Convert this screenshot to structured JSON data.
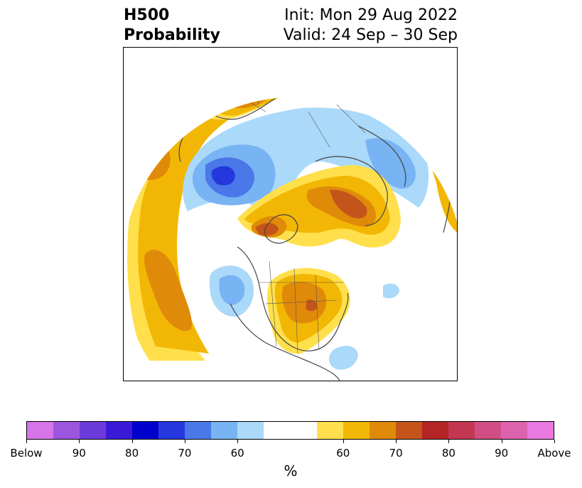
{
  "title": {
    "left_line1": "H500",
    "left_line2": "Probability",
    "right_line1": "Init: Mon 29 Aug 2022",
    "right_line2": "Valid: 24 Sep – 30 Sep"
  },
  "colorbar": {
    "unit": "%",
    "segments": [
      {
        "color": "#d674e8",
        "category": "below"
      },
      {
        "color": "#9d55e0",
        "category": "below"
      },
      {
        "color": "#6c3bd9",
        "category": "below"
      },
      {
        "color": "#3a1ad8",
        "category": "below"
      },
      {
        "color": "#0000cd",
        "category": "below"
      },
      {
        "color": "#2438dd",
        "category": "below"
      },
      {
        "color": "#4a78e8",
        "category": "below"
      },
      {
        "color": "#78b3f3",
        "category": "below"
      },
      {
        "color": "#aad9f9",
        "category": "below"
      },
      {
        "color": "#ffffff",
        "category": "neutral"
      },
      {
        "color": "#ffe04c",
        "category": "above"
      },
      {
        "color": "#f2b705",
        "category": "above"
      },
      {
        "color": "#e08a0a",
        "category": "above"
      },
      {
        "color": "#c5541a",
        "category": "above"
      },
      {
        "color": "#b52525",
        "category": "above"
      },
      {
        "color": "#c43752",
        "category": "above"
      },
      {
        "color": "#d04e84",
        "category": "above"
      },
      {
        "color": "#dd62ae",
        "category": "above"
      },
      {
        "color": "#e879e0",
        "category": "above"
      }
    ],
    "ticks": [
      "Below",
      "90",
      "80",
      "70",
      "60",
      "60",
      "70",
      "80",
      "90",
      "Above"
    ]
  },
  "map": {
    "projection": "north-polar-stereographic",
    "fill_colors": {
      "above_50": "#ffe04c",
      "above_60": "#f2b705",
      "above_70": "#e08a0a",
      "above_80": "#c5541a",
      "below_50": "#aad9f9",
      "below_60": "#78b3f3",
      "below_70": "#4a78e8",
      "below_80": "#2438dd"
    }
  }
}
